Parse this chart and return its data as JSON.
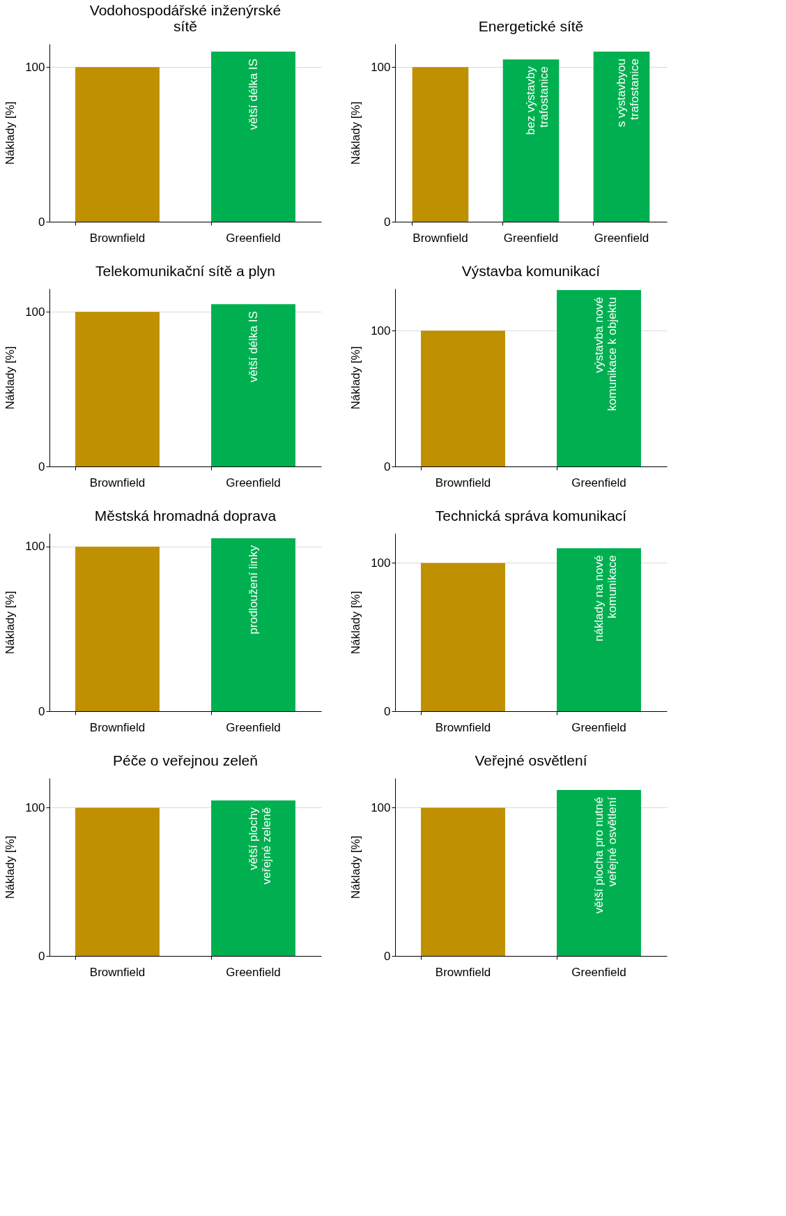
{
  "chart_data": [
    {
      "type": "bar",
      "title": "Vodohospodářské inženýrské\nsítě",
      "ylabel": "Náklady [%]",
      "categories": [
        "Brownfield",
        "Greenfield"
      ],
      "values": [
        100,
        110
      ],
      "colors": [
        "#bf9000",
        "#00b050"
      ],
      "value_labels": [
        null,
        "větší délka IS"
      ],
      "ylim": [
        0,
        115
      ],
      "yticks": [
        0,
        100
      ],
      "grid": "y"
    },
    {
      "type": "bar",
      "title": "Energetické sítě",
      "ylabel": "Náklady [%]",
      "categories": [
        "Brownfield",
        "Greenfield",
        "Greenfield"
      ],
      "values": [
        100,
        105,
        110
      ],
      "colors": [
        "#bf9000",
        "#00b050",
        "#00b050"
      ],
      "value_labels": [
        null,
        "bez výstavby\ntrafostanice",
        "s výstavbyou\ntrafostanice"
      ],
      "ylim": [
        0,
        115
      ],
      "yticks": [
        0,
        100
      ],
      "grid": "y"
    },
    {
      "type": "bar",
      "title": "Telekomunikační sítě a plyn",
      "ylabel": "Náklady [%]",
      "categories": [
        "Brownfield",
        "Greenfield"
      ],
      "values": [
        100,
        105
      ],
      "colors": [
        "#bf9000",
        "#00b050"
      ],
      "value_labels": [
        null,
        "větší délka IS"
      ],
      "ylim": [
        0,
        115
      ],
      "yticks": [
        0,
        100
      ],
      "grid": "y"
    },
    {
      "type": "bar",
      "title": "Výstavba komunikací",
      "ylabel": "Náklady [%]",
      "categories": [
        "Brownfield",
        "Greenfield"
      ],
      "values": [
        100,
        130
      ],
      "colors": [
        "#bf9000",
        "#00b050"
      ],
      "value_labels": [
        null,
        "výstavba nové\nkomunikace k objektu"
      ],
      "ylim": [
        0,
        131
      ],
      "yticks": [
        0,
        100
      ],
      "grid": "y"
    },
    {
      "type": "bar",
      "title": "Městská hromadná doprava",
      "ylabel": "Náklady [%]",
      "categories": [
        "Brownfield",
        "Greenfield"
      ],
      "values": [
        100,
        105
      ],
      "colors": [
        "#bf9000",
        "#00b050"
      ],
      "value_labels": [
        null,
        "prodloužení linky"
      ],
      "ylim": [
        0,
        108
      ],
      "yticks": [
        0,
        100
      ],
      "grid": "y"
    },
    {
      "type": "bar",
      "title": "Technická správa komunikací",
      "ylabel": "Náklady [%]",
      "categories": [
        "Brownfield",
        "Greenfield"
      ],
      "values": [
        100,
        110
      ],
      "colors": [
        "#bf9000",
        "#00b050"
      ],
      "value_labels": [
        null,
        "náklady na nové\nkomunikace"
      ],
      "ylim": [
        0,
        120
      ],
      "yticks": [
        0,
        100
      ],
      "grid": "y"
    },
    {
      "type": "bar",
      "title": "Péče o veřejnou zeleň",
      "ylabel": "Náklady [%]",
      "categories": [
        "Brownfield",
        "Greenfield"
      ],
      "values": [
        100,
        105
      ],
      "colors": [
        "#bf9000",
        "#00b050"
      ],
      "value_labels": [
        null,
        "větší plochy\nveřejné zeleně"
      ],
      "ylim": [
        0,
        120
      ],
      "yticks": [
        0,
        100
      ],
      "grid": "y"
    },
    {
      "type": "bar",
      "title": "Veřejné osvětlení",
      "ylabel": "Náklady [%]",
      "categories": [
        "Brownfield",
        "Greenfield"
      ],
      "values": [
        100,
        112
      ],
      "colors": [
        "#bf9000",
        "#00b050"
      ],
      "value_labels": [
        null,
        "větší plocha pro nutné\nveřejné osvětlení"
      ],
      "ylim": [
        0,
        120
      ],
      "yticks": [
        0,
        100
      ],
      "grid": "y"
    }
  ]
}
